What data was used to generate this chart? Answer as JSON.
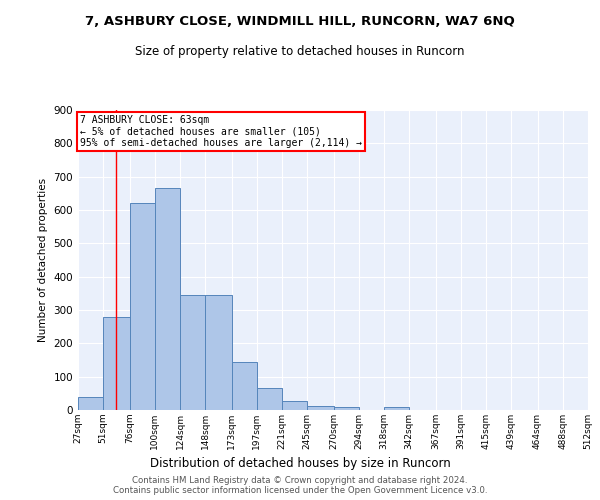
{
  "title": "7, ASHBURY CLOSE, WINDMILL HILL, RUNCORN, WA7 6NQ",
  "subtitle": "Size of property relative to detached houses in Runcorn",
  "xlabel": "Distribution of detached houses by size in Runcorn",
  "ylabel": "Number of detached properties",
  "bar_values": [
    40,
    280,
    620,
    665,
    345,
    345,
    145,
    65,
    28,
    12,
    10,
    0,
    8,
    0,
    0,
    0,
    0,
    0,
    0,
    0
  ],
  "bin_edges": [
    27,
    51,
    76,
    100,
    124,
    148,
    173,
    197,
    221,
    245,
    270,
    294,
    318,
    342,
    367,
    391,
    415,
    439,
    464,
    488,
    512
  ],
  "tick_labels": [
    "27sqm",
    "51sqm",
    "76sqm",
    "100sqm",
    "124sqm",
    "148sqm",
    "173sqm",
    "197sqm",
    "221sqm",
    "245sqm",
    "270sqm",
    "294sqm",
    "318sqm",
    "342sqm",
    "367sqm",
    "391sqm",
    "415sqm",
    "439sqm",
    "464sqm",
    "488sqm",
    "512sqm"
  ],
  "bar_color": "#aec6e8",
  "bar_edge_color": "#5585bb",
  "red_line_x": 63,
  "annotation_line1": "7 ASHBURY CLOSE: 63sqm",
  "annotation_line2": "← 5% of detached houses are smaller (105)",
  "annotation_line3": "95% of semi-detached houses are larger (2,114) →",
  "annotation_box_color": "white",
  "annotation_border_color": "red",
  "background_color": "#eaf0fb",
  "ylim": [
    0,
    900
  ],
  "yticks": [
    0,
    100,
    200,
    300,
    400,
    500,
    600,
    700,
    800,
    900
  ],
  "footer1": "Contains HM Land Registry data © Crown copyright and database right 2024.",
  "footer2": "Contains public sector information licensed under the Open Government Licence v3.0."
}
